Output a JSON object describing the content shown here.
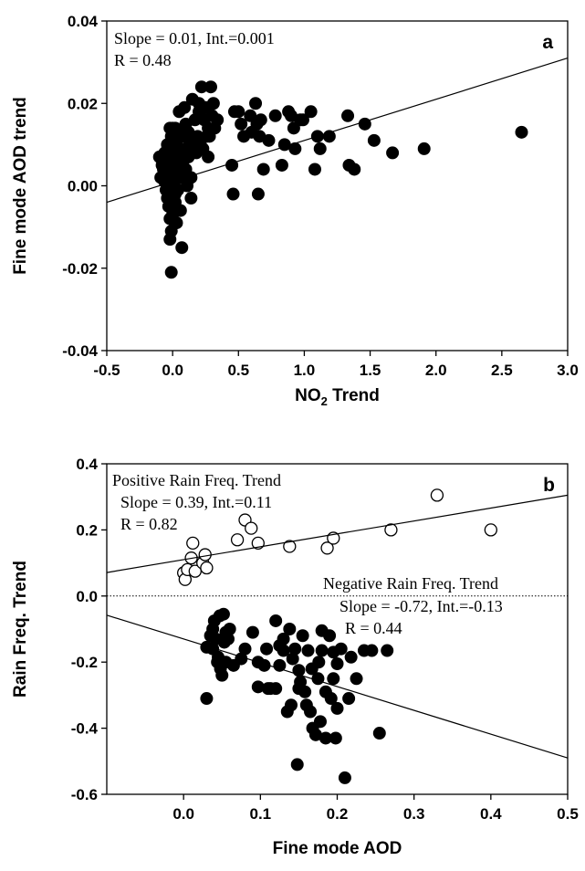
{
  "chart_data": [
    {
      "type": "scatter",
      "panel_label": "a",
      "xlabel": "NO",
      "xlabel_sub": "2",
      "xlabel_suffix": " Trend",
      "ylabel": "Fine mode AOD trend",
      "xlim": [
        -0.5,
        3.0
      ],
      "ylim": [
        -0.04,
        0.04
      ],
      "xticks": [
        -0.5,
        0.0,
        0.5,
        1.0,
        1.5,
        2.0,
        2.5,
        3.0
      ],
      "xtick_labels": [
        "-0.5",
        "0.0",
        "0.5",
        "1.0",
        "1.5",
        "2.0",
        "2.5",
        "3.0"
      ],
      "yticks": [
        -0.04,
        -0.02,
        0.0,
        0.02,
        0.04
      ],
      "ytick_labels": [
        "-0.04",
        "-0.02",
        "0.00",
        "0.02",
        "0.04"
      ],
      "grid": false,
      "annotations": [
        "Slope = 0.01, Int.=0.001",
        "R = 0.48"
      ],
      "fit_line": {
        "slope": 0.01,
        "intercept": 0.001
      },
      "series": [
        {
          "marker": "filled-circle",
          "points": [
            [
              -0.1,
              0.007
            ],
            [
              -0.08,
              0.005
            ],
            [
              -0.09,
              0.002
            ],
            [
              -0.07,
              0.004
            ],
            [
              -0.06,
              0.001
            ],
            [
              -0.05,
              -0.001
            ],
            [
              -0.04,
              -0.003
            ],
            [
              -0.05,
              0.006
            ],
            [
              -0.03,
              0.008
            ],
            [
              -0.02,
              0.003
            ],
            [
              -0.03,
              -0.005
            ],
            [
              -0.02,
              -0.008
            ],
            [
              -0.01,
              -0.011
            ],
            [
              -0.02,
              -0.013
            ],
            [
              0.0,
              -0.007
            ],
            [
              0.0,
              -0.002
            ],
            [
              0.01,
              0.001
            ],
            [
              0.01,
              0.004
            ],
            [
              0.02,
              -0.004
            ],
            [
              0.03,
              -0.009
            ],
            [
              0.02,
              0.009
            ],
            [
              0.03,
              0.01
            ],
            [
              -0.04,
              0.01
            ],
            [
              -0.01,
              0.012
            ],
            [
              0.02,
              0.006
            ],
            [
              0.0,
              -0.003
            ],
            [
              0.01,
              -0.006
            ],
            [
              0.03,
              0.002
            ],
            [
              0.04,
              -0.001
            ],
            [
              0.05,
              0.004
            ],
            [
              0.04,
              0.008
            ],
            [
              0.06,
              0.002
            ],
            [
              -0.06,
              0.008
            ],
            [
              -0.03,
              0.0
            ],
            [
              0.02,
              -0.002
            ],
            [
              -0.01,
              -0.021
            ],
            [
              0.07,
              -0.015
            ],
            [
              0.06,
              -0.006
            ],
            [
              0.05,
              0.009
            ],
            [
              0.08,
              0.006
            ],
            [
              0.1,
              0.004
            ],
            [
              0.12,
              0.007
            ],
            [
              0.14,
              0.002
            ],
            [
              0.1,
              0.009
            ],
            [
              0.11,
              0.0
            ],
            [
              0.14,
              -0.003
            ],
            [
              0.08,
              0.012
            ],
            [
              0.1,
              0.015
            ],
            [
              0.12,
              0.013
            ],
            [
              0.13,
              0.011
            ],
            [
              0.15,
              0.021
            ],
            [
              0.17,
              0.016
            ],
            [
              0.2,
              0.02
            ],
            [
              0.19,
              0.012
            ],
            [
              0.21,
              0.01
            ],
            [
              0.22,
              0.024
            ],
            [
              0.25,
              0.019
            ],
            [
              0.27,
              0.014
            ],
            [
              0.23,
              0.009
            ],
            [
              0.26,
              0.012
            ],
            [
              0.29,
              0.024
            ],
            [
              0.2,
              0.018
            ],
            [
              0.24,
              0.016
            ],
            [
              0.3,
              0.017
            ],
            [
              0.28,
              0.012
            ],
            [
              0.32,
              0.014
            ],
            [
              0.34,
              0.016
            ],
            [
              0.31,
              0.02
            ],
            [
              0.18,
              0.008
            ],
            [
              0.27,
              0.007
            ],
            [
              0.16,
              0.009
            ],
            [
              0.45,
              0.005
            ],
            [
              0.46,
              -0.002
            ],
            [
              0.47,
              0.018
            ],
            [
              0.52,
              0.015
            ],
            [
              0.54,
              0.012
            ],
            [
              0.5,
              0.018
            ],
            [
              0.59,
              0.017
            ],
            [
              0.6,
              0.013
            ],
            [
              0.63,
              0.02
            ],
            [
              0.64,
              0.015
            ],
            [
              0.65,
              -0.002
            ],
            [
              0.66,
              0.012
            ],
            [
              0.67,
              0.016
            ],
            [
              0.69,
              0.004
            ],
            [
              0.73,
              0.011
            ],
            [
              0.78,
              0.017
            ],
            [
              0.83,
              0.005
            ],
            [
              0.85,
              0.01
            ],
            [
              0.88,
              0.018
            ],
            [
              0.9,
              0.017
            ],
            [
              0.92,
              0.014
            ],
            [
              0.93,
              0.009
            ],
            [
              0.97,
              0.016
            ],
            [
              0.99,
              0.016
            ],
            [
              1.05,
              0.018
            ],
            [
              1.08,
              0.004
            ],
            [
              1.1,
              0.012
            ],
            [
              1.12,
              0.009
            ],
            [
              1.19,
              0.012
            ],
            [
              1.33,
              0.017
            ],
            [
              1.34,
              0.005
            ],
            [
              1.38,
              0.004
            ],
            [
              1.46,
              0.015
            ],
            [
              1.53,
              0.011
            ],
            [
              1.67,
              0.008
            ],
            [
              1.91,
              0.009
            ],
            [
              2.65,
              0.013
            ],
            [
              0.0,
              0.014
            ],
            [
              0.04,
              0.013
            ],
            [
              0.05,
              0.018
            ],
            [
              -0.02,
              0.014
            ],
            [
              0.02,
              0.014
            ],
            [
              0.09,
              0.019
            ]
          ]
        }
      ]
    },
    {
      "type": "scatter",
      "panel_label": "b",
      "xlabel": "Fine mode AOD",
      "ylabel": "Rain Freq. Trend",
      "xlim": [
        -0.1,
        0.5
      ],
      "ylim": [
        -0.6,
        0.4
      ],
      "xticks": [
        0.0,
        0.1,
        0.2,
        0.3,
        0.4,
        0.5
      ],
      "xtick_labels": [
        "0.0",
        "0.1",
        "0.2",
        "0.3",
        "0.4",
        "0.5"
      ],
      "yticks": [
        -0.6,
        -0.4,
        -0.2,
        0.0,
        0.2,
        0.4
      ],
      "ytick_labels": [
        "-0.6",
        "-0.4",
        "-0.2",
        "0.0",
        "0.2",
        "0.4"
      ],
      "grid": false,
      "zero_line": "dotted",
      "annotations": {
        "positive": [
          "Positive Rain Freq. Trend",
          "Slope = 0.39, Int.=0.11",
          "R = 0.82"
        ],
        "negative": [
          "Negative Rain Freq. Trend",
          "Slope = -0.72, Int.=-0.13",
          "R = 0.44"
        ]
      },
      "series": [
        {
          "name": "Positive Rain Freq. Trend",
          "marker": "open-circle",
          "fit_line": {
            "slope": 0.39,
            "intercept": 0.11
          },
          "points": [
            [
              0.0,
              0.07
            ],
            [
              0.002,
              0.05
            ],
            [
              0.005,
              0.08
            ],
            [
              0.01,
              0.115
            ],
            [
              0.012,
              0.16
            ],
            [
              0.015,
              0.075
            ],
            [
              0.025,
              0.1
            ],
            [
              0.03,
              0.085
            ],
            [
              0.028,
              0.125
            ],
            [
              0.07,
              0.17
            ],
            [
              0.08,
              0.23
            ],
            [
              0.088,
              0.205
            ],
            [
              0.097,
              0.16
            ],
            [
              0.138,
              0.15
            ],
            [
              0.187,
              0.145
            ],
            [
              0.195,
              0.175
            ],
            [
              0.27,
              0.2
            ],
            [
              0.33,
              0.305
            ],
            [
              0.4,
              0.2
            ]
          ]
        },
        {
          "name": "Negative Rain Freq. Trend",
          "marker": "filled-circle",
          "fit_line": {
            "slope": -0.72,
            "intercept": -0.13
          },
          "points": [
            [
              0.03,
              -0.31
            ],
            [
              0.03,
              -0.155
            ],
            [
              0.035,
              -0.12
            ],
            [
              0.038,
              -0.1
            ],
            [
              0.038,
              -0.16
            ],
            [
              0.04,
              -0.075
            ],
            [
              0.042,
              -0.13
            ],
            [
              0.044,
              -0.2
            ],
            [
              0.045,
              -0.185
            ],
            [
              0.047,
              -0.06
            ],
            [
              0.048,
              -0.22
            ],
            [
              0.05,
              -0.24
            ],
            [
              0.052,
              -0.055
            ],
            [
              0.053,
              -0.14
            ],
            [
              0.055,
              -0.2
            ],
            [
              0.055,
              -0.11
            ],
            [
              0.058,
              -0.13
            ],
            [
              0.06,
              -0.1
            ],
            [
              0.065,
              -0.21
            ],
            [
              0.075,
              -0.19
            ],
            [
              0.08,
              -0.16
            ],
            [
              0.09,
              -0.11
            ],
            [
              0.097,
              -0.2
            ],
            [
              0.097,
              -0.275
            ],
            [
              0.105,
              -0.21
            ],
            [
              0.108,
              -0.16
            ],
            [
              0.11,
              -0.28
            ],
            [
              0.113,
              -0.28
            ],
            [
              0.12,
              -0.075
            ],
            [
              0.12,
              -0.28
            ],
            [
              0.125,
              -0.15
            ],
            [
              0.125,
              -0.21
            ],
            [
              0.13,
              -0.165
            ],
            [
              0.13,
              -0.13
            ],
            [
              0.135,
              -0.35
            ],
            [
              0.138,
              -0.1
            ],
            [
              0.14,
              -0.33
            ],
            [
              0.142,
              -0.19
            ],
            [
              0.145,
              -0.16
            ],
            [
              0.148,
              -0.51
            ],
            [
              0.15,
              -0.225
            ],
            [
              0.15,
              -0.28
            ],
            [
              0.152,
              -0.26
            ],
            [
              0.155,
              -0.12
            ],
            [
              0.158,
              -0.29
            ],
            [
              0.16,
              -0.33
            ],
            [
              0.162,
              -0.165
            ],
            [
              0.165,
              -0.35
            ],
            [
              0.167,
              -0.22
            ],
            [
              0.168,
              -0.4
            ],
            [
              0.172,
              -0.42
            ],
            [
              0.175,
              -0.25
            ],
            [
              0.176,
              -0.2
            ],
            [
              0.178,
              -0.38
            ],
            [
              0.18,
              -0.105
            ],
            [
              0.18,
              -0.165
            ],
            [
              0.185,
              -0.29
            ],
            [
              0.185,
              -0.43
            ],
            [
              0.19,
              -0.12
            ],
            [
              0.192,
              -0.31
            ],
            [
              0.195,
              -0.17
            ],
            [
              0.195,
              -0.25
            ],
            [
              0.198,
              -0.43
            ],
            [
              0.2,
              -0.205
            ],
            [
              0.2,
              -0.34
            ],
            [
              0.205,
              -0.16
            ],
            [
              0.21,
              -0.55
            ],
            [
              0.215,
              -0.31
            ],
            [
              0.218,
              -0.185
            ],
            [
              0.225,
              -0.25
            ],
            [
              0.235,
              -0.165
            ],
            [
              0.245,
              -0.165
            ],
            [
              0.255,
              -0.415
            ],
            [
              0.265,
              -0.165
            ]
          ]
        }
      ]
    }
  ]
}
